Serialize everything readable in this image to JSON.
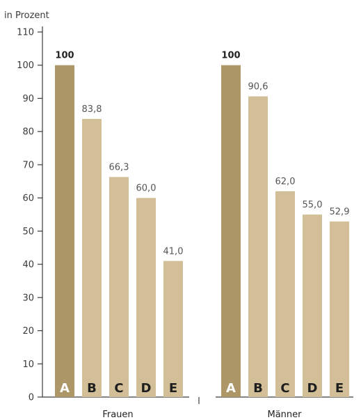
{
  "chart_data": {
    "type": "bar",
    "ylabel": "in Prozent",
    "ylim": [
      0,
      110
    ],
    "yticks": [
      0,
      10,
      20,
      30,
      40,
      50,
      60,
      70,
      80,
      90,
      100,
      110
    ],
    "categories": [
      "A",
      "B",
      "C",
      "D",
      "E"
    ],
    "groups": [
      {
        "name": "Frauen",
        "values": [
          100,
          83.8,
          66.3,
          60.0,
          41.0
        ],
        "value_labels": [
          "100",
          "83,8",
          "66,3",
          "60,0",
          "41,0"
        ]
      },
      {
        "name": "Männer",
        "values": [
          100,
          90.6,
          62.0,
          55.0,
          52.9
        ],
        "value_labels": [
          "100",
          "90,6",
          "62,0",
          "55,0",
          "52,9"
        ]
      }
    ],
    "colors": {
      "first_bar": "#ad9668",
      "other_bars": "#d2bf98",
      "axis": "#3a3a3a",
      "background": "#ffffff"
    }
  }
}
